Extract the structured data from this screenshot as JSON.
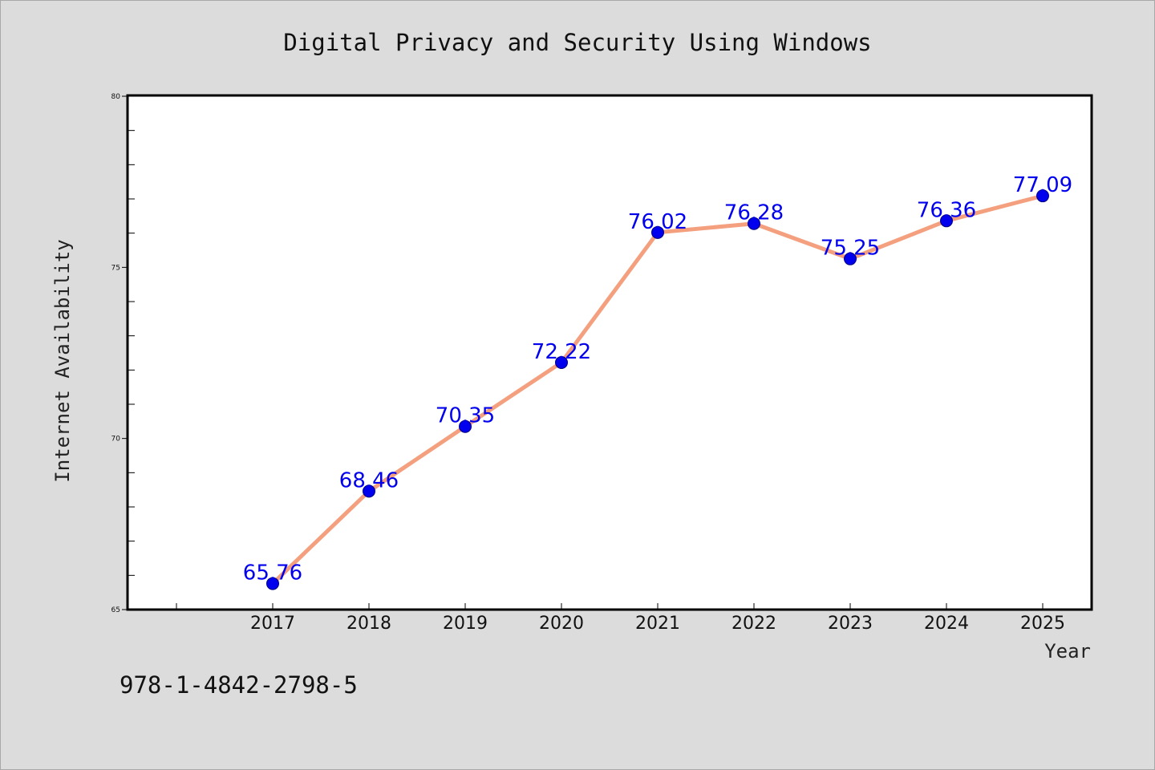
{
  "chart_data": {
    "type": "line",
    "title": "Digital Privacy and Security Using Windows",
    "xlabel": "Year",
    "ylabel": "Internet Availability",
    "categories": [
      "2017",
      "2018",
      "2019",
      "2020",
      "2021",
      "2022",
      "2023",
      "2024",
      "2025"
    ],
    "values": [
      65.76,
      68.46,
      70.35,
      72.22,
      76.02,
      76.28,
      75.25,
      76.36,
      77.09
    ],
    "data_labels": [
      "65.76",
      "68.46",
      "70.35",
      "72.22",
      "76.02",
      "76.28",
      "75.25",
      "76.36",
      "77.09"
    ],
    "ylim": [
      65,
      80
    ],
    "y_ticks": [
      65,
      70,
      75,
      80
    ],
    "y_minor_step": 1,
    "grid": false,
    "line_color": "#f4a07f",
    "marker_color": "#0000ee",
    "label_color": "#0000ee"
  },
  "footer": {
    "text": "978-1-4842-2798-5"
  }
}
